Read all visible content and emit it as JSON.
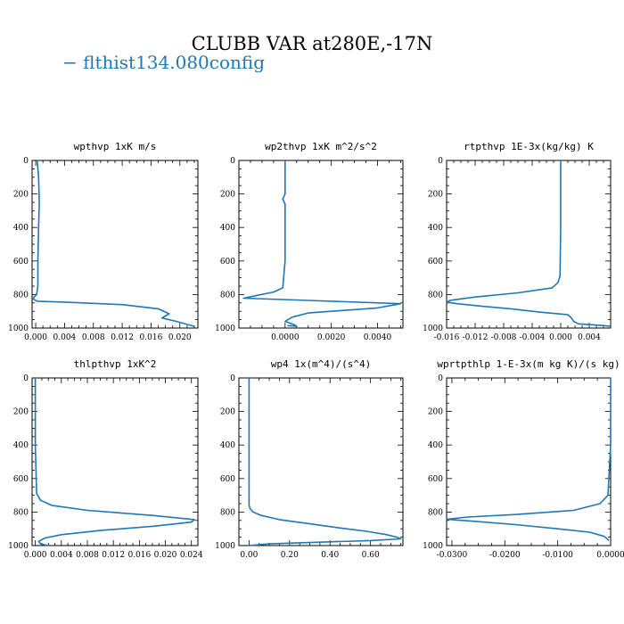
{
  "title": "CLUBB VAR at280E,-17N",
  "legend": {
    "dash": "−",
    "label": "flthist134.080config",
    "color": "#1f77b4"
  },
  "chart_data": [
    {
      "type": "line",
      "title": "wpthvp   1xK m/s",
      "xlim": [
        -0.0005,
        0.0225
      ],
      "ylim": [
        1000,
        0
      ],
      "xticks": [
        0.0,
        0.004,
        0.008,
        0.012,
        0.016,
        0.02
      ],
      "xtick_labels": [
        "0.000",
        "0.004",
        "0.008",
        "0.012",
        "0.016",
        "0.020"
      ],
      "yticks": [
        0,
        200,
        400,
        600,
        800,
        1000
      ],
      "ytick_labels": [
        "0",
        "200",
        "400",
        "600",
        "800",
        "1000"
      ],
      "series": [
        {
          "color": "#1f77b4",
          "x": [
            0.0002,
            0.0004,
            0.0005,
            0.0004,
            0.0003,
            0.0003,
            0.0002,
            0.0001,
            -0.0002,
            -0.0004,
            0.0002,
            0.004,
            0.012,
            0.017,
            0.0185,
            0.0175,
            0.0195,
            0.022
          ],
          "y": [
            0,
            100,
            250,
            400,
            600,
            750,
            780,
            800,
            815,
            825,
            840,
            845,
            860,
            885,
            915,
            940,
            960,
            990
          ]
        }
      ]
    },
    {
      "type": "line",
      "title": "wp2thvp   1xK m^2/s^2",
      "xlim": [
        -0.002,
        0.0051
      ],
      "ylim": [
        1000,
        0
      ],
      "xticks": [
        0.0,
        0.002,
        0.004
      ],
      "xtick_labels": [
        "0.0000",
        "0.0020",
        "0.0040"
      ],
      "yticks": [
        0,
        200,
        400,
        600,
        800,
        1000
      ],
      "ytick_labels": [
        "0",
        "200",
        "400",
        "600",
        "800",
        "1000"
      ],
      "series": [
        {
          "color": "#1f77b4",
          "x": [
            0.0,
            0.0,
            -0.0001,
            0.0,
            0.0,
            0.0,
            -0.0001,
            -0.0005,
            -0.0012,
            -0.0018,
            0.001,
            0.005,
            0.004,
            0.0025,
            0.001,
            0.0003,
            0.0,
            0.0004,
            0.0005,
            0.0001
          ],
          "y": [
            0,
            200,
            230,
            260,
            400,
            600,
            760,
            785,
            805,
            822,
            835,
            855,
            880,
            895,
            910,
            935,
            960,
            980,
            990,
            985
          ]
        }
      ]
    },
    {
      "type": "line",
      "title": "rtpthvp   1E-3x(kg/kg) K",
      "xlim": [
        -0.016,
        0.007
      ],
      "ylim": [
        1000,
        0
      ],
      "xticks": [
        -0.016,
        -0.012,
        -0.008,
        -0.004,
        0.0,
        0.004
      ],
      "xtick_labels": [
        "-0.016",
        "-0.012",
        "-0.008",
        "-0.004",
        "0.000",
        "0.004"
      ],
      "yticks": [
        0,
        200,
        400,
        600,
        800,
        1000
      ],
      "ytick_labels": [
        "0",
        "200",
        "400",
        "600",
        "800",
        "1000"
      ],
      "series": [
        {
          "color": "#1f77b4",
          "x": [
            0.0,
            0.0,
            -0.0001,
            -0.0004,
            -0.0012,
            -0.006,
            -0.012,
            -0.0155,
            -0.016,
            -0.0145,
            -0.011,
            -0.007,
            -0.003,
            0.001,
            0.0015,
            0.0018,
            0.0025,
            0.006,
            0.007
          ],
          "y": [
            0,
            400,
            690,
            730,
            760,
            790,
            815,
            835,
            845,
            855,
            870,
            885,
            905,
            920,
            940,
            960,
            975,
            985,
            990
          ]
        }
      ]
    },
    {
      "type": "line",
      "title": "thlpthvp   1xK^2",
      "xlim": [
        -0.0005,
        0.025
      ],
      "ylim": [
        1000,
        0
      ],
      "xticks": [
        0.0,
        0.004,
        0.008,
        0.012,
        0.016,
        0.02,
        0.024
      ],
      "xtick_labels": [
        "0.000",
        "0.004",
        "0.008",
        "0.012",
        "0.016",
        "0.020",
        "0.024"
      ],
      "yticks": [
        0,
        200,
        400,
        600,
        800,
        1000
      ],
      "ytick_labels": [
        "0",
        "200",
        "400",
        "600",
        "800",
        "1000"
      ],
      "series": [
        {
          "color": "#1f77b4",
          "x": [
            0.0,
            0.0,
            0.0002,
            0.0008,
            0.0025,
            0.008,
            0.018,
            0.0245,
            0.024,
            0.018,
            0.01,
            0.004,
            0.0015,
            0.0005,
            0.0008,
            0.002
          ],
          "y": [
            0,
            400,
            690,
            730,
            760,
            790,
            820,
            845,
            860,
            885,
            910,
            935,
            955,
            975,
            990,
            1000
          ]
        }
      ]
    },
    {
      "type": "line",
      "title": "wp4   1x(m^4)/(s^4)",
      "xlim": [
        -0.05,
        0.76
      ],
      "ylim": [
        1000,
        0
      ],
      "xticks": [
        0.0,
        0.2,
        0.4,
        0.6
      ],
      "xtick_labels": [
        "0.00",
        "0.20",
        "0.40",
        "0.60"
      ],
      "yticks": [
        0,
        200,
        400,
        600,
        800,
        1000
      ],
      "ytick_labels": [
        "0",
        "200",
        "400",
        "600",
        "800",
        "1000"
      ],
      "series": [
        {
          "color": "#1f77b4",
          "x": [
            0.0,
            0.0,
            0.0,
            0.005,
            0.02,
            0.06,
            0.15,
            0.3,
            0.45,
            0.58,
            0.68,
            0.73,
            0.75,
            0.6,
            0.35,
            0.1,
            0.0
          ],
          "y": [
            0,
            400,
            760,
            780,
            800,
            820,
            845,
            870,
            895,
            915,
            935,
            950,
            960,
            970,
            980,
            990,
            1000
          ]
        }
      ]
    },
    {
      "type": "line",
      "title": "wprtpthlp   1-E-3x(m kg K)/(s kg)",
      "xlim": [
        -0.031,
        0.0
      ],
      "ylim": [
        1000,
        0
      ],
      "xticks": [
        -0.03,
        -0.02,
        -0.01,
        0.0
      ],
      "xtick_labels": [
        "-0.0300",
        "-0.0200",
        "-0.0100",
        "0.0000"
      ],
      "yticks": [
        0,
        200,
        400,
        600,
        800,
        1000
      ],
      "ytick_labels": [
        "0",
        "200",
        "400",
        "600",
        "800",
        "1000"
      ],
      "series": [
        {
          "color": "#1f77b4",
          "x": [
            0.0,
            0.0,
            -0.0005,
            -0.002,
            -0.007,
            -0.018,
            -0.027,
            -0.031,
            -0.026,
            -0.018,
            -0.01,
            -0.004,
            -0.0012,
            -0.0003
          ],
          "y": [
            0,
            400,
            700,
            750,
            790,
            815,
            830,
            843,
            855,
            875,
            900,
            920,
            945,
            970
          ]
        }
      ]
    }
  ]
}
